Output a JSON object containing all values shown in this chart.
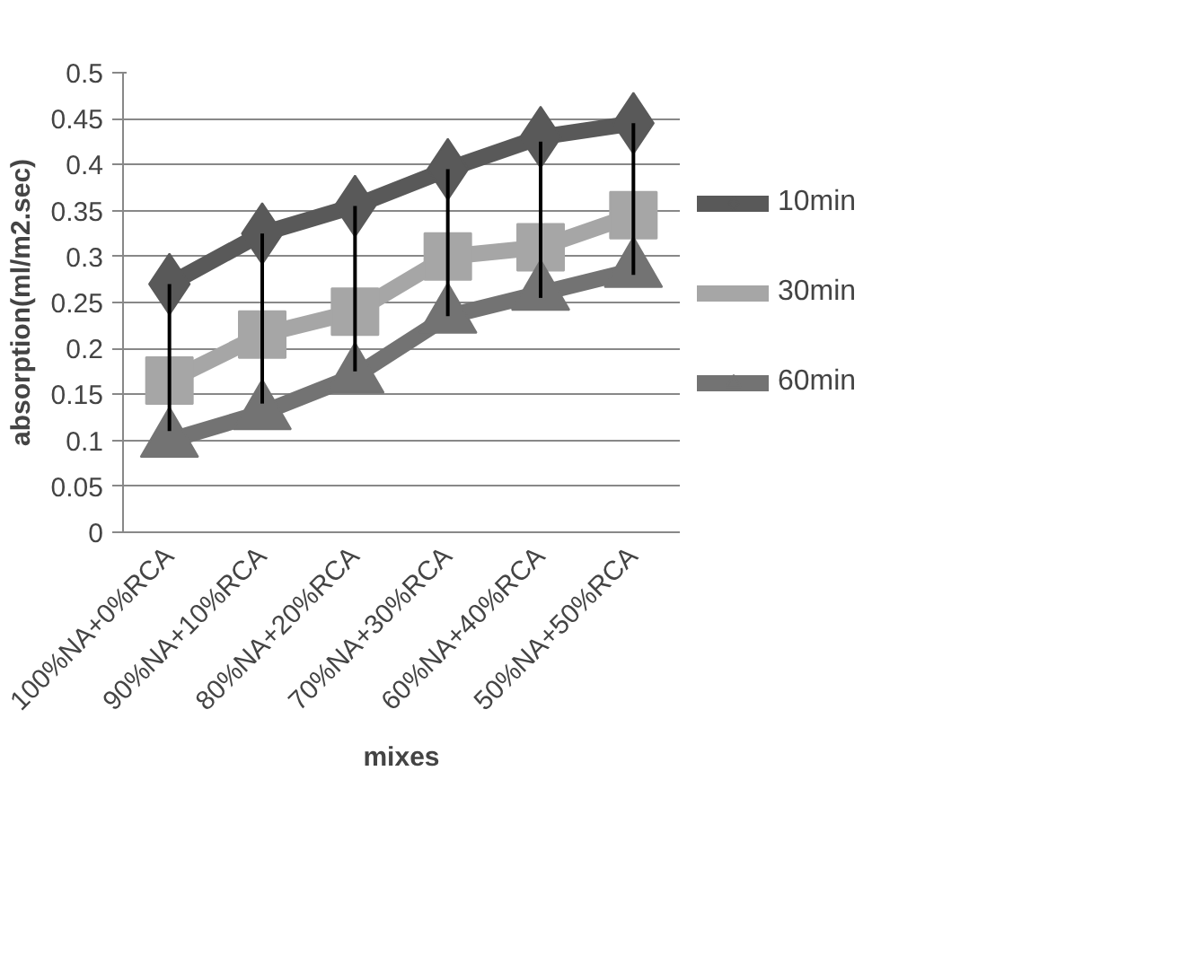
{
  "chart_data": {
    "type": "line",
    "xlabel": "mixes",
    "ylabel": "absorption(ml/m2.sec)",
    "categories": [
      "100%NA+0%RCA",
      "90%NA+10%RCA",
      "80%NA+20%RCA",
      "70%NA+30%RCA",
      "60%NA+40%RCA",
      "50%NA+50%RCA"
    ],
    "series": [
      {
        "name": "10min",
        "color": "#595959",
        "marker": "diamond",
        "values": [
          0.27,
          0.325,
          0.355,
          0.395,
          0.43,
          0.445
        ]
      },
      {
        "name": "30min",
        "color": "#a6a6a6",
        "marker": "square",
        "values": [
          0.165,
          0.215,
          0.24,
          0.3,
          0.31,
          0.345
        ],
        "errors": [
          [
            0.11,
            0.27
          ],
          [
            0.14,
            0.325
          ],
          [
            0.175,
            0.355
          ],
          [
            0.235,
            0.395
          ],
          [
            0.255,
            0.425
          ],
          [
            0.28,
            0.445
          ]
        ]
      },
      {
        "name": "60min",
        "color": "#737373",
        "marker": "triangle",
        "values": [
          0.1,
          0.13,
          0.17,
          0.235,
          0.26,
          0.285
        ]
      }
    ],
    "ylim": [
      0,
      0.5
    ],
    "yticks": [
      0,
      0.05,
      0.1,
      0.15,
      0.2,
      0.25,
      0.3,
      0.35,
      0.4,
      0.45,
      0.5
    ],
    "grid": "y",
    "legend": "right"
  }
}
